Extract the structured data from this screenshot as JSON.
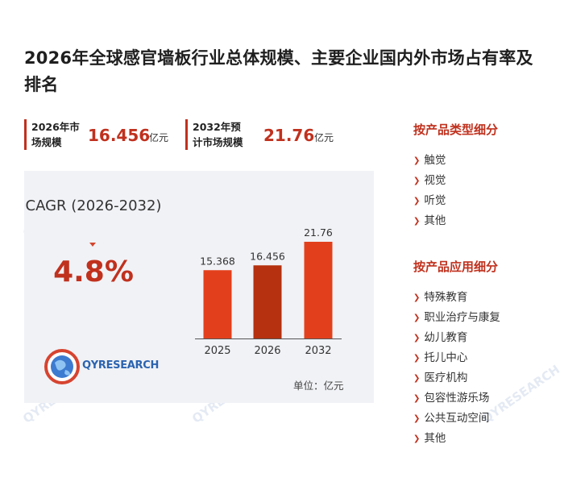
{
  "title": "2026年全球感官墙板行业总体规模、主要企业国内外市场占有率及排名",
  "stats": [
    {
      "label": "2026年市场规模",
      "value": "16.456",
      "unit": "亿元"
    },
    {
      "label": "2032年预计市场规模",
      "value": "21.76",
      "unit": "亿元"
    }
  ],
  "cagr": {
    "label": "CAGR (2026-2032)",
    "value": "4.8%"
  },
  "logo_text": "QYRESEARCH",
  "unit_note": "单位：亿元",
  "colors": {
    "accent": "#c0311e",
    "bar": "#e2401c",
    "bar_dark": "#b5310f",
    "panel": "#f1f2f6"
  },
  "chart_data": {
    "type": "bar",
    "categories": [
      "2025",
      "2026",
      "2032"
    ],
    "values": [
      15.368,
      16.456,
      21.76
    ],
    "data_labels": [
      "15.368",
      "16.456",
      "21.76"
    ],
    "ylim": [
      0,
      23
    ]
  },
  "by_type": {
    "heading": "按产品类型细分",
    "items": [
      "触觉",
      "视觉",
      "听觉",
      "其他"
    ]
  },
  "by_application": {
    "heading": "按产品应用细分",
    "items": [
      "特殊教育",
      "职业治疗与康复",
      "幼儿教育",
      "托儿中心",
      "医疗机构",
      "包容性游乐场",
      "公共互动空间",
      "其他"
    ]
  },
  "watermark_text": "QYRESEARCH"
}
